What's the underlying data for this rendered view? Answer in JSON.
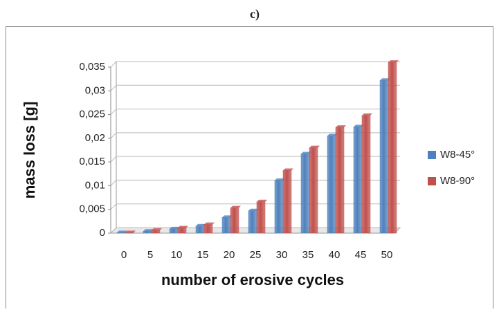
{
  "chart_data": {
    "type": "bar",
    "title": "c)",
    "y_label": "mass loss [g]",
    "x_label": "number of erosive cycles",
    "categories": [
      "0",
      "5",
      "10",
      "15",
      "20",
      "25",
      "30",
      "35",
      "40",
      "45",
      "50"
    ],
    "series": [
      {
        "name": "W8-45°",
        "color": "#4f81bd",
        "values": [
          0.0001,
          0.0004,
          0.0009,
          0.0015,
          0.0033,
          0.0047,
          0.0111,
          0.0167,
          0.0205,
          0.0224,
          0.0322
        ]
      },
      {
        "name": "W8-90°",
        "color": "#c0504d",
        "values": [
          0.0001,
          0.0006,
          0.0011,
          0.0018,
          0.0053,
          0.0066,
          0.0132,
          0.018,
          0.0223,
          0.0248,
          0.036
        ]
      }
    ],
    "ylim": [
      0,
      0.035
    ],
    "yticks": [
      0,
      {
        "value": 0.005,
        "label": "0,005"
      },
      {
        "value": 0.01,
        "label": "0,01"
      },
      {
        "value": 0.015,
        "label": "0,015"
      },
      {
        "value": 0.02,
        "label": "0,02"
      },
      {
        "value": 0.025,
        "label": "0,025"
      },
      {
        "value": 0.03,
        "label": "0,03"
      },
      {
        "value": 0.035,
        "label": "0,035"
      }
    ],
    "grid": true,
    "legend": "right"
  }
}
